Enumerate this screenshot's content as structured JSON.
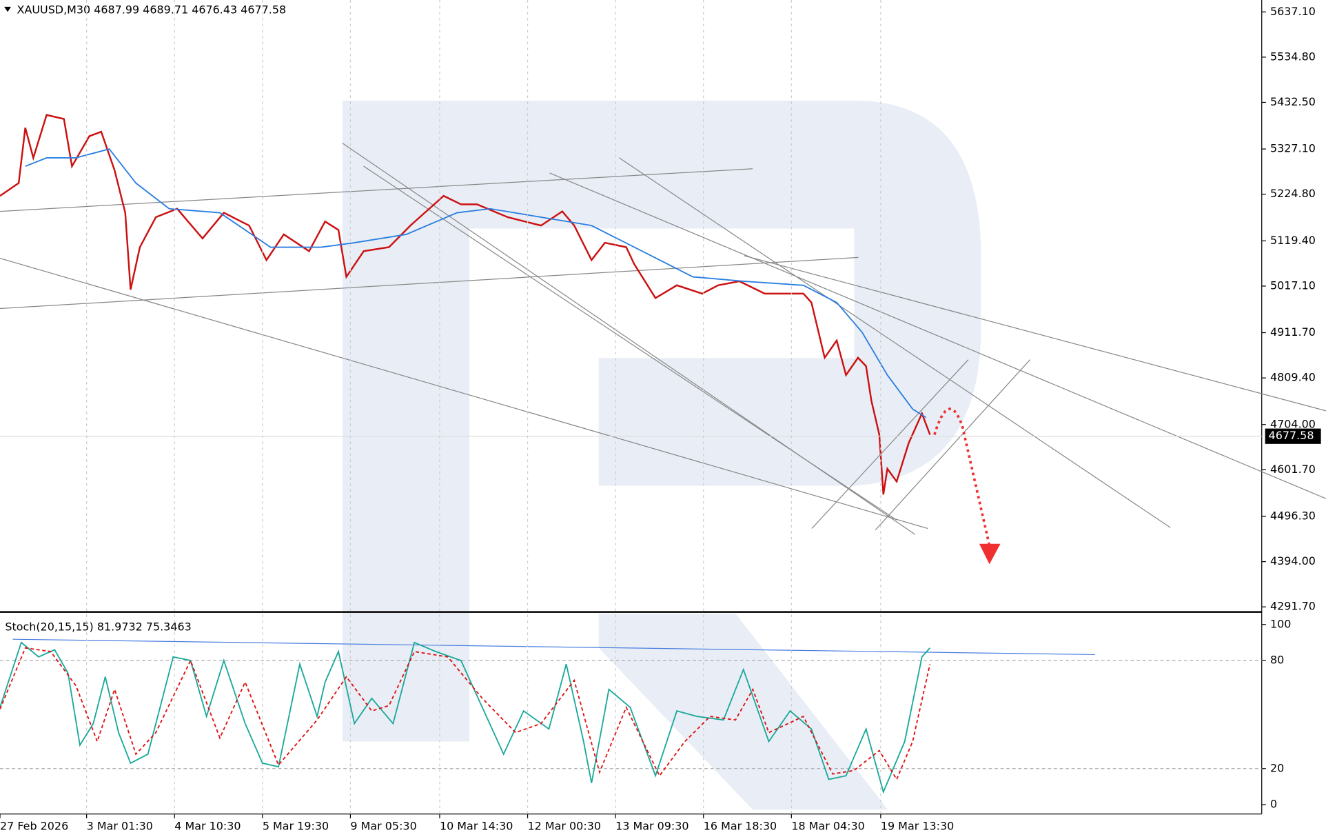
{
  "chart_data": [
    {
      "type": "line",
      "title": "XAUUSD,M30 4687.99 4689.71 4676.43 4677.58",
      "last_price": 4677.58,
      "xlim": [
        0,
        947
      ],
      "ylim": [
        4284,
        5664
      ],
      "yticks": [
        {
          "value": 5637.1,
          "label": "5637.10"
        },
        {
          "value": 5534.8,
          "label": "5534.80"
        },
        {
          "value": 5432.5,
          "label": "5432.50"
        },
        {
          "value": 5327.1,
          "label": "5327.10"
        },
        {
          "value": 5224.8,
          "label": "5224.80"
        },
        {
          "value": 5119.4,
          "label": "5119.40"
        },
        {
          "value": 5017.1,
          "label": "5017.10"
        },
        {
          "value": 4911.7,
          "label": "4911.70"
        },
        {
          "value": 4809.4,
          "label": "4809.40"
        },
        {
          "value": 4704,
          "label": "4704.00"
        },
        {
          "value": 4601.7,
          "label": "4601.70"
        },
        {
          "value": 4496.3,
          "label": "4496.30"
        },
        {
          "value": 4394,
          "label": "4394.00"
        },
        {
          "value": 4291.7,
          "label": "4291.70"
        }
      ],
      "series": [
        {
          "color": "#cc1111",
          "x": [
            0,
            14,
            19,
            25,
            35,
            48,
            54,
            67,
            76,
            86,
            94,
            98,
            105,
            117,
            133,
            152,
            168,
            187,
            200,
            213,
            232,
            244,
            254,
            260,
            273,
            292,
            308,
            333,
            346,
            358,
            381,
            406,
            422,
            431,
            444,
            454,
            470,
            476,
            492,
            508,
            527,
            539,
            555,
            574,
            603,
            609,
            619,
            628,
            635,
            644,
            650,
            654,
            660,
            663,
            666,
            673,
            682,
            692,
            698
          ],
          "values": [
            5221,
            5250,
            5375,
            5307,
            5404,
            5395,
            5288,
            5356,
            5366,
            5279,
            5183,
            5009,
            5105,
            5173,
            5192,
            5125,
            5183,
            5154,
            5076,
            5134,
            5096,
            5163,
            5144,
            5038,
            5096,
            5105,
            5154,
            5221,
            5202,
            5202,
            5173,
            5154,
            5186,
            5154,
            5076,
            5115,
            5105,
            5067,
            4990,
            5019,
            5000,
            5019,
            5028,
            5000,
            5000,
            4980,
            4855,
            4894,
            4816,
            4855,
            4836,
            4758,
            4681,
            4546,
            4604,
            4575,
            4662,
            4729,
            4681
          ]
        },
        {
          "color": "#2a7ee0",
          "x": [
            19,
            35,
            57,
            82,
            102,
            127,
            165,
            203,
            241,
            266,
            305,
            343,
            368,
            406,
            444,
            482,
            520,
            558,
            603,
            628,
            647,
            666,
            685,
            695
          ],
          "values": [
            5288,
            5307,
            5307,
            5327,
            5250,
            5192,
            5183,
            5105,
            5105,
            5115,
            5134,
            5183,
            5192,
            5173,
            5154,
            5096,
            5038,
            5028,
            5019,
            4980,
            4913,
            4816,
            4739,
            4720
          ]
        }
      ]
    },
    {
      "type": "line",
      "title": "Stoch(20,15,15) 81.9732 75.3463",
      "xlim": [
        0,
        947
      ],
      "ylim": [
        -5.2,
        106
      ],
      "yticks": [
        100,
        80,
        20,
        0
      ],
      "levels": [
        80,
        20
      ],
      "xticks": [
        {
          "value": 0,
          "label": "27 Feb 2026"
        },
        {
          "value": 65,
          "label": "3 Mar 01:30"
        },
        {
          "value": 131,
          "label": "4 Mar 10:30"
        },
        {
          "value": 197,
          "label": "5 Mar 19:30"
        },
        {
          "value": 263,
          "label": "9 Mar 05:30"
        },
        {
          "value": 330,
          "label": "10 Mar 14:30"
        },
        {
          "value": 396,
          "label": "12 Mar 00:30"
        },
        {
          "value": 462,
          "label": "13 Mar 09:30"
        },
        {
          "value": 528,
          "label": "16 Mar 18:30"
        },
        {
          "value": 594,
          "label": "18 Mar 04:30"
        },
        {
          "value": 661,
          "label": "19 Mar 13:30"
        }
      ],
      "series": [
        {
          "color": "#1aa89a",
          "x": [
            0,
            16,
            29,
            41,
            51,
            60,
            70,
            79,
            89,
            98,
            111,
            130,
            143,
            155,
            168,
            184,
            197,
            209,
            225,
            238,
            244,
            254,
            266,
            279,
            295,
            311,
            327,
            346,
            362,
            378,
            393,
            412,
            425,
            438,
            444,
            457,
            473,
            492,
            508,
            523,
            543,
            558,
            577,
            593,
            609,
            622,
            635,
            650,
            663,
            679,
            692,
            698
          ],
          "values": [
            54,
            90,
            82,
            86,
            73,
            33,
            45,
            71,
            40,
            23,
            28,
            82,
            80,
            49,
            80,
            45,
            23,
            21,
            78,
            49,
            68,
            85,
            45,
            59,
            45,
            90,
            85,
            80,
            54,
            28,
            52,
            42,
            78,
            35,
            12,
            64,
            54,
            16,
            52,
            49,
            47,
            75,
            35,
            52,
            42,
            14,
            16,
            42,
            7,
            35,
            82,
            87
          ]
        },
        {
          "color": "#e01010",
          "dashed": true,
          "x": [
            0,
            19,
            38,
            57,
            73,
            86,
            102,
            117,
            143,
            165,
            184,
            209,
            238,
            260,
            279,
            292,
            311,
            336,
            362,
            387,
            406,
            431,
            450,
            470,
            495,
            514,
            533,
            552,
            565,
            577,
            603,
            625,
            641,
            660,
            673,
            685,
            698
          ],
          "values": [
            53,
            87,
            85,
            66,
            35,
            64,
            28,
            40,
            80,
            37,
            68,
            22,
            47,
            71,
            52,
            55,
            85,
            82,
            59,
            40,
            45,
            69,
            18,
            54,
            16,
            35,
            49,
            47,
            64,
            40,
            49,
            17,
            19,
            30,
            14,
            35,
            78
          ]
        }
      ]
    }
  ]
}
